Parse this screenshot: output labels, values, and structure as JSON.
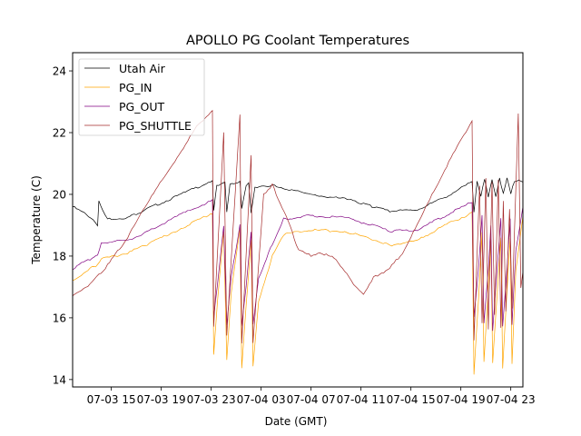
{
  "chart_data": {
    "type": "line",
    "title": "APOLLO PG Coolant Temperatures",
    "xlabel": "Date (GMT)",
    "ylabel": "Temperature (C)",
    "x_unit": "hours since 07-03 00:00",
    "xlim": [
      11.9,
      47.97
    ],
    "ylim": [
      13.76,
      24.59
    ],
    "xticks": [
      {
        "value": 15,
        "label": "07-03 15"
      },
      {
        "value": 19,
        "label": "07-03 19"
      },
      {
        "value": 23,
        "label": "07-03 23"
      },
      {
        "value": 27,
        "label": "07-04 03"
      },
      {
        "value": 31,
        "label": "07-04 07"
      },
      {
        "value": 35,
        "label": "07-04 11"
      },
      {
        "value": 39,
        "label": "07-04 15"
      },
      {
        "value": 43,
        "label": "07-04 19"
      },
      {
        "value": 47,
        "label": "07-04 23"
      }
    ],
    "yticks": [
      14,
      16,
      18,
      20,
      22,
      24
    ],
    "grid": false,
    "legend_position": "top-left",
    "series": [
      {
        "name": "Utah Air",
        "color": "#000000",
        "points": [
          [
            11.9,
            19.6
          ],
          [
            13.0,
            19.35
          ],
          [
            13.9,
            19.0
          ],
          [
            14.0,
            19.8
          ],
          [
            14.3,
            19.5
          ],
          [
            14.7,
            19.2
          ],
          [
            16.3,
            19.25
          ],
          [
            17.7,
            19.5
          ],
          [
            20.6,
            20.0
          ],
          [
            23.1,
            20.45
          ],
          [
            23.2,
            19.5
          ],
          [
            23.45,
            20.3
          ],
          [
            24.1,
            20.4
          ],
          [
            24.25,
            19.4
          ],
          [
            24.5,
            20.3
          ],
          [
            25.3,
            20.4
          ],
          [
            25.45,
            19.5
          ],
          [
            25.8,
            20.3
          ],
          [
            26.0,
            20.4
          ],
          [
            26.2,
            19.4
          ],
          [
            26.5,
            20.25
          ],
          [
            27.9,
            20.3
          ],
          [
            30.8,
            20.0
          ],
          [
            33.7,
            19.85
          ],
          [
            35.2,
            19.7
          ],
          [
            35.9,
            19.6
          ],
          [
            37.3,
            19.45
          ],
          [
            39.5,
            19.5
          ],
          [
            41.7,
            19.9
          ],
          [
            43.9,
            20.4
          ],
          [
            44.05,
            19.4
          ],
          [
            44.3,
            20.4
          ],
          [
            44.6,
            19.9
          ],
          [
            44.9,
            20.5
          ],
          [
            45.2,
            19.95
          ],
          [
            45.5,
            20.5
          ],
          [
            45.8,
            19.95
          ],
          [
            46.1,
            20.5
          ],
          [
            46.4,
            20.0
          ],
          [
            46.7,
            20.5
          ],
          [
            47.0,
            20.0
          ],
          [
            47.3,
            20.45
          ],
          [
            47.97,
            20.4
          ]
        ]
      },
      {
        "name": "PG_IN",
        "color": "#FFA500",
        "points": [
          [
            11.9,
            17.2
          ],
          [
            13.3,
            17.6
          ],
          [
            13.9,
            17.7
          ],
          [
            14.2,
            17.9
          ],
          [
            16.3,
            18.1
          ],
          [
            17.7,
            18.35
          ],
          [
            20.6,
            18.9
          ],
          [
            23.1,
            19.4
          ],
          [
            23.2,
            14.8
          ],
          [
            23.5,
            16.5
          ],
          [
            24.0,
            18.8
          ],
          [
            24.25,
            14.6
          ],
          [
            24.6,
            16.8
          ],
          [
            25.3,
            18.9
          ],
          [
            25.45,
            14.4
          ],
          [
            25.8,
            16.4
          ],
          [
            26.2,
            18.5
          ],
          [
            26.35,
            14.4
          ],
          [
            26.8,
            16.5
          ],
          [
            27.9,
            18.0
          ],
          [
            28.8,
            18.7
          ],
          [
            30.8,
            18.85
          ],
          [
            33.7,
            18.8
          ],
          [
            35.9,
            18.55
          ],
          [
            37.3,
            18.35
          ],
          [
            39.5,
            18.5
          ],
          [
            41.7,
            19.0
          ],
          [
            43.9,
            19.4
          ],
          [
            44.05,
            14.2
          ],
          [
            44.4,
            16.5
          ],
          [
            44.7,
            18.8
          ],
          [
            44.85,
            14.6
          ],
          [
            45.2,
            17.0
          ],
          [
            45.4,
            18.5
          ],
          [
            45.55,
            14.5
          ],
          [
            45.9,
            16.7
          ],
          [
            46.2,
            18.6
          ],
          [
            46.35,
            14.4
          ],
          [
            46.7,
            16.9
          ],
          [
            46.95,
            18.6
          ],
          [
            47.1,
            14.5
          ],
          [
            47.4,
            17.5
          ],
          [
            47.97,
            19.3
          ]
        ]
      },
      {
        "name": "PG_OUT",
        "color": "#800080",
        "points": [
          [
            11.9,
            17.6
          ],
          [
            13.3,
            17.9
          ],
          [
            13.9,
            18.05
          ],
          [
            14.2,
            18.45
          ],
          [
            16.3,
            18.5
          ],
          [
            17.7,
            18.75
          ],
          [
            20.6,
            19.35
          ],
          [
            23.1,
            19.8
          ],
          [
            23.2,
            16.0
          ],
          [
            23.5,
            17.1
          ],
          [
            24.0,
            19.0
          ],
          [
            24.25,
            15.8
          ],
          [
            24.6,
            17.3
          ],
          [
            25.3,
            19.0
          ],
          [
            25.45,
            15.7
          ],
          [
            25.8,
            17.0
          ],
          [
            26.2,
            18.8
          ],
          [
            26.35,
            15.8
          ],
          [
            26.8,
            17.3
          ],
          [
            27.9,
            18.4
          ],
          [
            28.8,
            19.2
          ],
          [
            30.8,
            19.3
          ],
          [
            33.7,
            19.25
          ],
          [
            35.9,
            19.0
          ],
          [
            37.3,
            18.8
          ],
          [
            39.5,
            18.85
          ],
          [
            41.7,
            19.3
          ],
          [
            43.9,
            19.75
          ],
          [
            44.05,
            16.0
          ],
          [
            44.4,
            17.5
          ],
          [
            44.7,
            19.3
          ],
          [
            44.85,
            15.8
          ],
          [
            45.2,
            17.6
          ],
          [
            45.4,
            19.0
          ],
          [
            45.55,
            15.6
          ],
          [
            45.9,
            17.6
          ],
          [
            46.2,
            19.2
          ],
          [
            46.35,
            15.7
          ],
          [
            46.7,
            17.6
          ],
          [
            46.95,
            19.2
          ],
          [
            47.1,
            15.8
          ],
          [
            47.4,
            18.2
          ],
          [
            47.97,
            19.6
          ]
        ]
      },
      {
        "name": "PG_SHUTTLE",
        "color": "#A52A2A",
        "points": [
          [
            11.9,
            16.7
          ],
          [
            13.3,
            17.1
          ],
          [
            14.7,
            17.7
          ],
          [
            16.3,
            18.6
          ],
          [
            17.7,
            19.6
          ],
          [
            20.6,
            21.4
          ],
          [
            22.0,
            22.3
          ],
          [
            23.1,
            22.7
          ],
          [
            23.2,
            15.7
          ],
          [
            24.0,
            22.0
          ],
          [
            24.25,
            15.4
          ],
          [
            25.3,
            22.6
          ],
          [
            25.45,
            15.2
          ],
          [
            26.2,
            21.3
          ],
          [
            26.35,
            15.2
          ],
          [
            27.2,
            20.0
          ],
          [
            27.9,
            20.3
          ],
          [
            29.0,
            19.3
          ],
          [
            30.0,
            18.2
          ],
          [
            31.0,
            18.0
          ],
          [
            31.9,
            18.1
          ],
          [
            33.0,
            17.9
          ],
          [
            34.4,
            17.1
          ],
          [
            35.2,
            16.8
          ],
          [
            36.0,
            17.3
          ],
          [
            37.3,
            17.6
          ],
          [
            38.5,
            18.2
          ],
          [
            39.5,
            19.0
          ],
          [
            41.7,
            20.8
          ],
          [
            43.9,
            22.4
          ],
          [
            44.05,
            15.3
          ],
          [
            44.5,
            20.3
          ],
          [
            44.7,
            15.8
          ],
          [
            45.0,
            20.5
          ],
          [
            45.2,
            15.6
          ],
          [
            45.5,
            20.4
          ],
          [
            45.7,
            16.1
          ],
          [
            46.0,
            20.5
          ],
          [
            46.2,
            15.7
          ],
          [
            46.4,
            19.8
          ],
          [
            46.6,
            16.2
          ],
          [
            46.9,
            19.5
          ],
          [
            47.1,
            16.3
          ],
          [
            47.6,
            22.6
          ],
          [
            47.8,
            17.0
          ],
          [
            47.97,
            17.5
          ]
        ]
      }
    ]
  }
}
